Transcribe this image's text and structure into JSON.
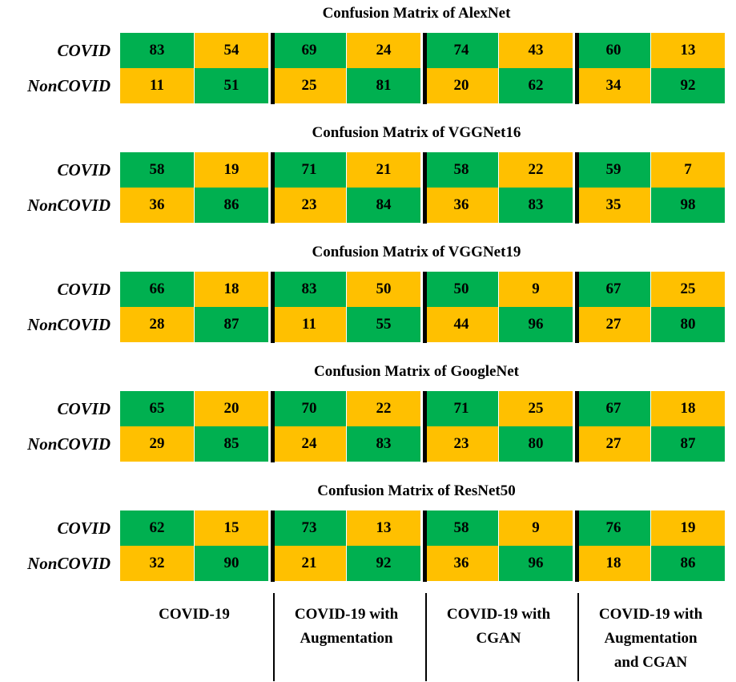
{
  "chart_data": {
    "type": "table",
    "row_labels": [
      "COVID",
      "NonCOVID"
    ],
    "column_groups": [
      [
        "COVID-19"
      ],
      [
        "COVID-19 with",
        "Augmentation"
      ],
      [
        "COVID-19 with",
        "CGAN"
      ],
      [
        "COVID-19 with",
        "Augmentation",
        "and CGAN"
      ]
    ],
    "colors": {
      "correct": "#00b050",
      "incorrect": "#ffc000",
      "separator": "#000000"
    },
    "matrices": [
      {
        "title": "Confusion Matrix of AlexNet",
        "rows": [
          [
            "83",
            "54",
            "69",
            "24",
            "74",
            "43",
            "60",
            "13"
          ],
          [
            "11",
            "51",
            "25",
            "81",
            "20",
            "62",
            "34",
            "92"
          ]
        ]
      },
      {
        "title": "Confusion Matrix of VGGNet16",
        "rows": [
          [
            "58",
            "19",
            "71",
            "21",
            "58",
            "22",
            "59",
            "7"
          ],
          [
            "36",
            "86",
            "23",
            "84",
            "36",
            "83",
            "35",
            "98"
          ]
        ]
      },
      {
        "title": "Confusion Matrix of VGGNet19",
        "rows": [
          [
            "66",
            "18",
            "83",
            "50",
            "50",
            "9",
            "67",
            "25"
          ],
          [
            "28",
            "87",
            "11",
            "55",
            "44",
            "96",
            "27",
            "80"
          ]
        ]
      },
      {
        "title": "Confusion Matrix of GoogleNet",
        "rows": [
          [
            "65",
            "20",
            "70",
            "22",
            "71",
            "25",
            "67",
            "18"
          ],
          [
            "29",
            "85",
            "24",
            "83",
            "23",
            "80",
            "27",
            "87"
          ]
        ]
      },
      {
        "title": "Confusion Matrix of ResNet50",
        "rows": [
          [
            "62",
            "15",
            "73",
            "13",
            "58",
            "9",
            "76",
            "19"
          ],
          [
            "32",
            "90",
            "21",
            "92",
            "36",
            "96",
            "18",
            "86"
          ]
        ]
      }
    ]
  }
}
